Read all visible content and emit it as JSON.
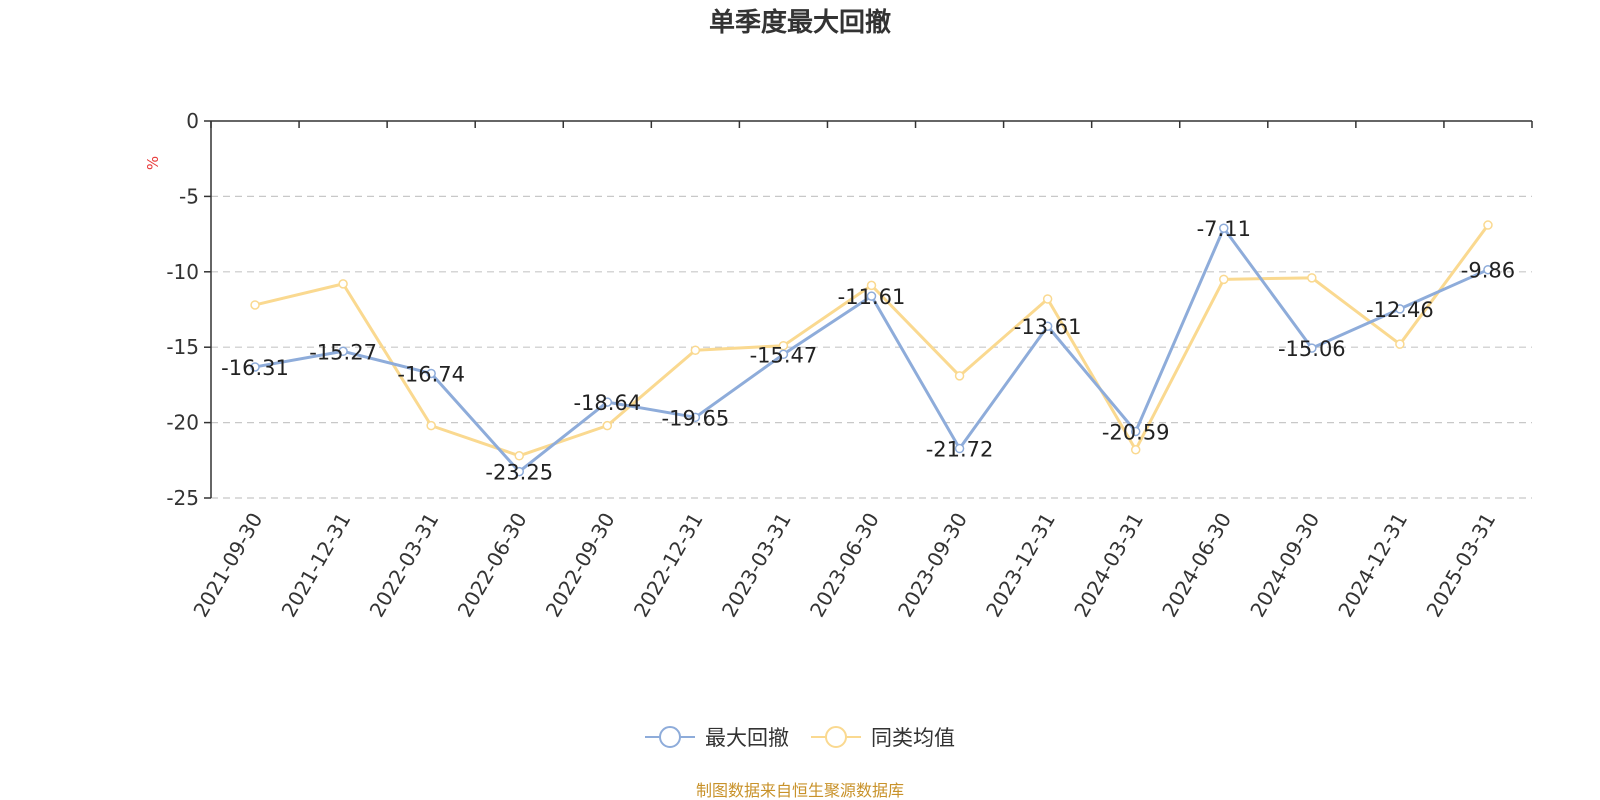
{
  "chart_data": {
    "type": "line",
    "title": "单季度最大回撤",
    "xlabel": "",
    "ylabel": "%",
    "ylim": [
      -25,
      0
    ],
    "yticks": [
      0,
      -5,
      -10,
      -15,
      -20,
      -25
    ],
    "grid": true,
    "legend_position": "bottom",
    "categories": [
      "2021-09-30",
      "2021-12-31",
      "2022-03-31",
      "2022-06-30",
      "2022-09-30",
      "2022-12-31",
      "2023-03-31",
      "2023-06-30",
      "2023-09-30",
      "2023-12-31",
      "2024-03-31",
      "2024-06-30",
      "2024-09-30",
      "2024-12-31",
      "2025-03-31"
    ],
    "series": [
      {
        "name": "最大回撤",
        "color": "#8eacda",
        "show_labels": true,
        "values": [
          -16.31,
          -15.27,
          -16.74,
          -23.25,
          -18.64,
          -19.65,
          -15.47,
          -11.61,
          -21.72,
          -13.61,
          -20.59,
          -7.11,
          -15.06,
          -12.46,
          -9.86
        ]
      },
      {
        "name": "同类均值",
        "color": "#fad990",
        "show_labels": false,
        "values": [
          -12.2,
          -10.8,
          -20.2,
          -22.2,
          -20.2,
          -15.2,
          -14.9,
          -10.9,
          -16.9,
          -11.8,
          -21.8,
          -10.5,
          -10.4,
          -14.8,
          -6.9
        ]
      }
    ]
  },
  "colors": {
    "axis": "#333333",
    "grid": "#c8c8c8",
    "unit_label": "#e83a3a",
    "source": "#c8922a"
  },
  "source_note": "制图数据来自恒生聚源数据库"
}
